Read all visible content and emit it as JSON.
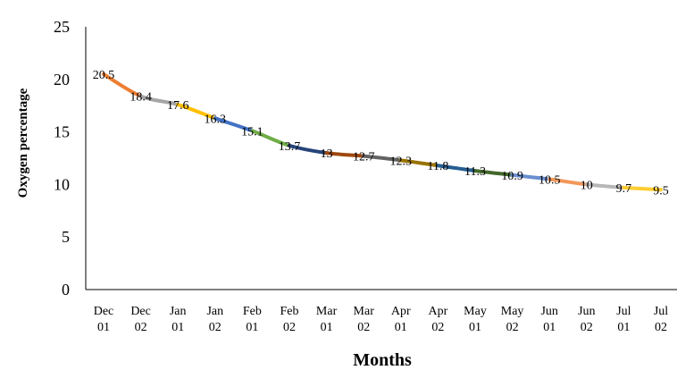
{
  "chart_data": {
    "type": "line",
    "title": "",
    "xlabel": "Months",
    "ylabel": "Oxygen percentage",
    "ylim": [
      0,
      25
    ],
    "yticks": [
      "0",
      "5",
      "10",
      "15",
      "20",
      "25"
    ],
    "grid": false,
    "legend": "none",
    "categories": [
      [
        "Dec",
        "01"
      ],
      [
        "Dec",
        "02"
      ],
      [
        "Jan",
        "01"
      ],
      [
        "Jan",
        "02"
      ],
      [
        "Feb",
        "01"
      ],
      [
        "Feb",
        "02"
      ],
      [
        "Mar",
        "01"
      ],
      [
        "Mar",
        "02"
      ],
      [
        "Apr",
        "01"
      ],
      [
        "Apr",
        "02"
      ],
      [
        "May",
        "01"
      ],
      [
        "May",
        "02"
      ],
      [
        "Jun",
        "01"
      ],
      [
        "Jun",
        "02"
      ],
      [
        "Jul",
        "01"
      ],
      [
        "Jul",
        "02"
      ]
    ],
    "values": [
      20.5,
      18.4,
      17.6,
      16.3,
      15.1,
      13.7,
      13,
      12.7,
      12.3,
      11.8,
      11.3,
      10.9,
      10.5,
      10,
      9.7,
      9.5
    ],
    "data_labels": [
      "20.5",
      "18.4",
      "17.6",
      "16.3",
      "15.1",
      "13.7",
      "13",
      "12.7",
      "12.3",
      "11.8",
      "11.3",
      "10.9",
      "10.5",
      "10",
      "9.7",
      "9.5"
    ],
    "segment_colors": [
      "#ED7D31",
      "#A5A5A5",
      "#FFC000",
      "#4472C4",
      "#70AD47",
      "#264478",
      "#9E480E",
      "#636363",
      "#997300",
      "#255E91",
      "#43682B",
      "#698ED0",
      "#F1975A",
      "#B7B7B7",
      "#FFCD33"
    ]
  }
}
